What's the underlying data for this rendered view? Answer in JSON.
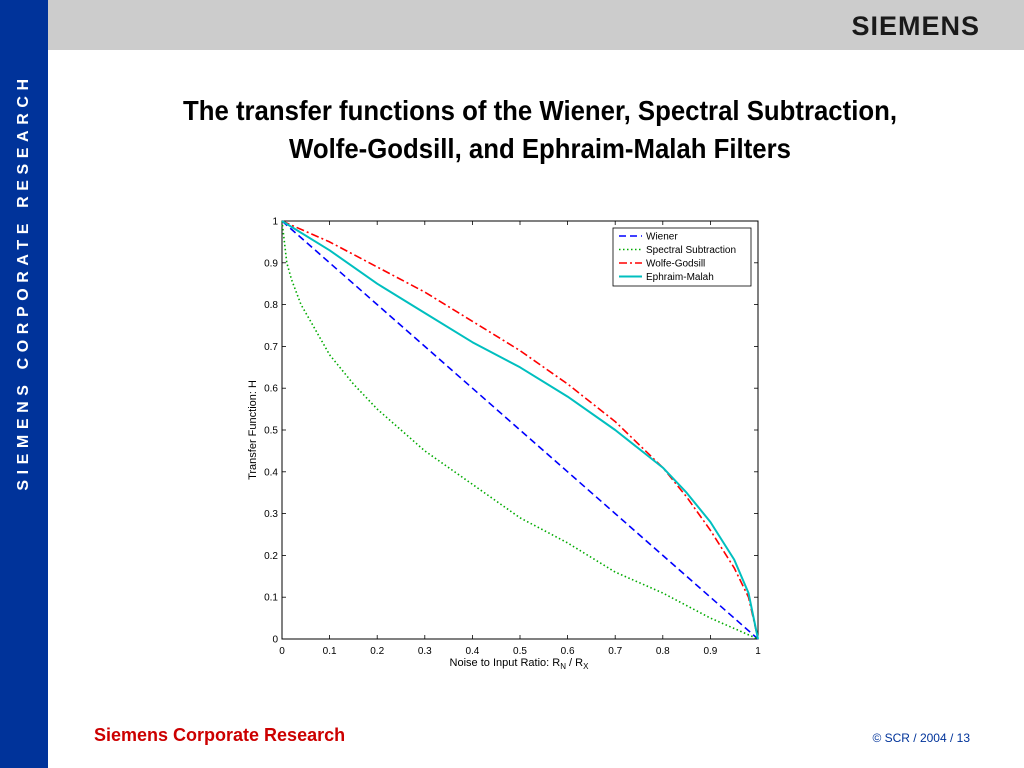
{
  "brand": {
    "logo": "SIEMENS",
    "side_text": "SIEMENS CORPORATE RESEARCH",
    "colors": {
      "side_bar": "#00339a",
      "top_bar": "#cccccc",
      "footer_left": "#cc0000"
    }
  },
  "title": {
    "line1": "The transfer functions of the Wiener, Spectral Subtraction,",
    "line2": "Wolfe-Godsill, and Ephraim-Malah Filters"
  },
  "footer": {
    "left": "Siemens Corporate Research",
    "right": "© SCR / 2004 / 13"
  },
  "chart_data": {
    "type": "line",
    "xlabel_main": "Noise to Input Ratio: R",
    "xlabel_sub1": "N",
    "xlabel_sep": " / R",
    "xlabel_sub2": "X",
    "ylabel": "Transfer Function: H",
    "xlim": [
      0,
      1
    ],
    "ylim": [
      0,
      1
    ],
    "xticks": [
      "0",
      "0.1",
      "0.2",
      "0.3",
      "0.4",
      "0.5",
      "0.6",
      "0.7",
      "0.8",
      "0.9",
      "1"
    ],
    "yticks": [
      "0",
      "0.1",
      "0.2",
      "0.3",
      "0.4",
      "0.5",
      "0.6",
      "0.7",
      "0.8",
      "0.9",
      "1"
    ],
    "grid": false,
    "legend_position": "top-right",
    "series": [
      {
        "name": "Wiener",
        "color": "#0000ff",
        "style": "dashed",
        "x": [
          0,
          0.1,
          0.2,
          0.3,
          0.4,
          0.5,
          0.6,
          0.7,
          0.8,
          0.9,
          1
        ],
        "y": [
          1,
          0.9,
          0.8,
          0.7,
          0.6,
          0.5,
          0.4,
          0.3,
          0.2,
          0.1,
          0
        ]
      },
      {
        "name": "Spectral Subtraction",
        "color": "#00aa00",
        "style": "dotted",
        "x": [
          0,
          0.01,
          0.02,
          0.04,
          0.06,
          0.1,
          0.15,
          0.2,
          0.3,
          0.4,
          0.5,
          0.6,
          0.7,
          0.8,
          0.9,
          0.95,
          1
        ],
        "y": [
          1,
          0.9,
          0.86,
          0.8,
          0.76,
          0.68,
          0.61,
          0.55,
          0.45,
          0.37,
          0.29,
          0.23,
          0.16,
          0.11,
          0.05,
          0.025,
          0
        ]
      },
      {
        "name": "Wolfe-Godsill",
        "color": "#ff0000",
        "style": "dashdot",
        "x": [
          0,
          0.1,
          0.2,
          0.3,
          0.4,
          0.5,
          0.6,
          0.7,
          0.8,
          0.85,
          0.9,
          0.95,
          0.98,
          1
        ],
        "y": [
          1,
          0.95,
          0.89,
          0.83,
          0.76,
          0.69,
          0.61,
          0.52,
          0.41,
          0.34,
          0.26,
          0.17,
          0.1,
          0
        ]
      },
      {
        "name": "Ephraim-Malah",
        "color": "#00bfbf",
        "style": "solid",
        "x": [
          0,
          0.1,
          0.2,
          0.3,
          0.4,
          0.5,
          0.6,
          0.7,
          0.8,
          0.85,
          0.9,
          0.95,
          0.98,
          1
        ],
        "y": [
          1,
          0.93,
          0.85,
          0.78,
          0.71,
          0.65,
          0.58,
          0.5,
          0.41,
          0.35,
          0.28,
          0.19,
          0.11,
          0
        ]
      }
    ]
  }
}
